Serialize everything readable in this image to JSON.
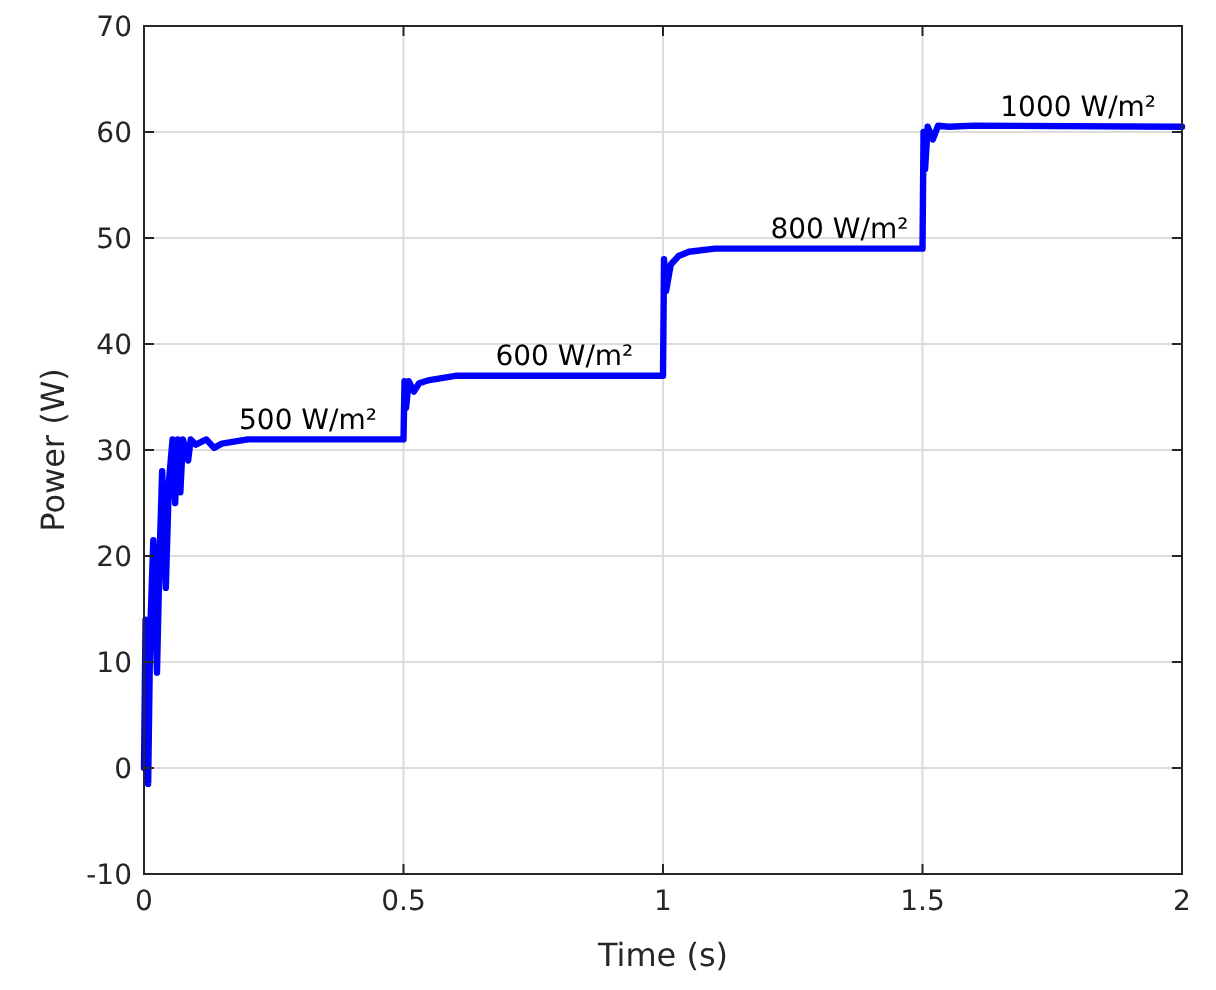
{
  "chart_data": {
    "type": "line",
    "xlabel": "Time (s)",
    "ylabel": "Power (W)",
    "xlim": [
      0,
      2
    ],
    "ylim": [
      -10,
      70
    ],
    "xticks": [
      0,
      0.5,
      1,
      1.5,
      2
    ],
    "yticks": [
      -10,
      0,
      10,
      20,
      30,
      40,
      50,
      60,
      70
    ],
    "grid": true,
    "line_style": "solid",
    "marker": "none",
    "series": [
      {
        "color": "#0000ff",
        "x": [
          0,
          0.003,
          0.008,
          0.012,
          0.018,
          0.025,
          0.03,
          0.035,
          0.042,
          0.048,
          0.055,
          0.06,
          0.065,
          0.07,
          0.075,
          0.085,
          0.09,
          0.1,
          0.12,
          0.135,
          0.15,
          0.2,
          0.5,
          0.502,
          0.505,
          0.51,
          0.52,
          0.53,
          0.55,
          0.6,
          1,
          1.002,
          1.006,
          1.015,
          1.03,
          1.05,
          1.1,
          1.5,
          1.502,
          1.505,
          1.51,
          1.52,
          1.53,
          1.55,
          1.6,
          2
        ],
        "values": [
          0,
          14,
          -1.5,
          13,
          21.5,
          9,
          20,
          28,
          17,
          27,
          31,
          25,
          31,
          26,
          31,
          29,
          31,
          30.5,
          31,
          30.2,
          30.6,
          31,
          31,
          36.5,
          34,
          36.5,
          35.5,
          36.3,
          36.6,
          37,
          37,
          48,
          45,
          47.5,
          48.3,
          48.7,
          49,
          49,
          60,
          56.5,
          60.5,
          59.3,
          60.6,
          60.5,
          60.6,
          60.5
        ]
      }
    ],
    "annotations": [
      {
        "text": "500 W/m²",
        "x": 0.316,
        "y": 32
      },
      {
        "text": "600 W/m²",
        "x": 0.81,
        "y": 38
      },
      {
        "text": "800 W/m²",
        "x": 1.34,
        "y": 50
      },
      {
        "text": "1000 W/m²",
        "x": 1.8,
        "y": 61.5
      }
    ]
  }
}
